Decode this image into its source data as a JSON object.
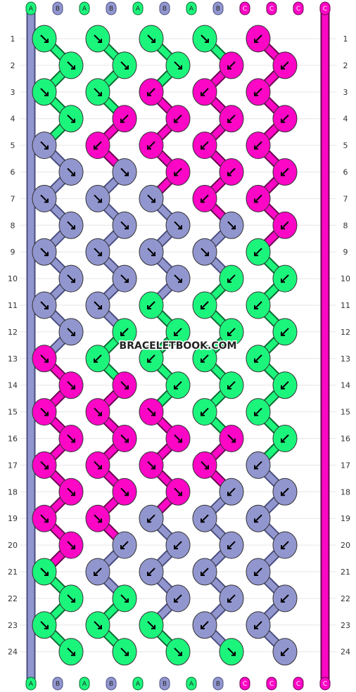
{
  "watermark": "BRACELETBOOK.COM",
  "colors": {
    "A": "#1cf57c",
    "B": "#9296cf",
    "C": "#fc07c5"
  },
  "strands": {
    "top": [
      "A",
      "B",
      "A",
      "B",
      "A",
      "B",
      "A",
      "B",
      "C",
      "C",
      "C",
      "C"
    ],
    "bottom": [
      "A",
      "B",
      "A",
      "B",
      "A",
      "B",
      "A",
      "B",
      "C",
      "C",
      "C",
      "C"
    ]
  },
  "row_labels": [
    "1",
    "2",
    "3",
    "4",
    "5",
    "6",
    "7",
    "8",
    "9",
    "10",
    "11",
    "12",
    "13",
    "14",
    "15",
    "16",
    "17",
    "18",
    "19",
    "20",
    "21",
    "22",
    "23",
    "24"
  ],
  "knots": [
    [
      "A:dr",
      "A:dr",
      "A:dr",
      "A:dr",
      "C:dl"
    ],
    [
      "A:dr",
      "A:dr",
      "A:dr",
      "C:dl",
      "C:dl"
    ],
    [
      "A:dr",
      "A:dr",
      "C:dl",
      "C:dl",
      "C:dl"
    ],
    [
      "A:dr",
      "C:dl",
      "C:dl",
      "C:dl",
      "C:dl"
    ],
    [
      "B:dr",
      "C:dl",
      "C:dl",
      "C:dl",
      "C:dl"
    ],
    [
      "B:dr",
      "B:dr",
      "C:dl",
      "C:dl",
      "C:dl"
    ],
    [
      "B:dr",
      "B:dr",
      "B:dr",
      "C:dl",
      "C:dl"
    ],
    [
      "B:dr",
      "B:dr",
      "B:dr",
      "B:dr",
      "C:dl"
    ],
    [
      "B:dr",
      "B:dr",
      "B:dr",
      "B:dr",
      "A:dl"
    ],
    [
      "B:dr",
      "B:dr",
      "B:dr",
      "A:dl",
      "A:dl"
    ],
    [
      "B:dr",
      "B:dr",
      "A:dl",
      "A:dl",
      "A:dl"
    ],
    [
      "B:dr",
      "A:dl",
      "A:dl",
      "A:dl",
      "A:dl"
    ],
    [
      "C:dr",
      "A:dl",
      "A:dl",
      "A:dl",
      "A:dl"
    ],
    [
      "C:dr",
      "C:dr",
      "A:dl",
      "A:dl",
      "A:dl"
    ],
    [
      "C:dr",
      "C:dr",
      "C:dr",
      "A:dl",
      "A:dl"
    ],
    [
      "C:dr",
      "C:dr",
      "C:dr",
      "C:dr",
      "A:dl"
    ],
    [
      "C:dr",
      "C:dr",
      "C:dr",
      "C:dr",
      "B:dl"
    ],
    [
      "C:dr",
      "C:dr",
      "C:dr",
      "B:dl",
      "B:dl"
    ],
    [
      "C:dr",
      "C:dr",
      "B:dl",
      "B:dl",
      "B:dl"
    ],
    [
      "C:dr",
      "B:dl",
      "B:dl",
      "B:dl",
      "B:dl"
    ],
    [
      "A:dr",
      "B:dl",
      "B:dl",
      "B:dl",
      "B:dl"
    ],
    [
      "A:dr",
      "A:dr",
      "B:dl",
      "B:dl",
      "B:dl"
    ],
    [
      "A:dr",
      "A:dr",
      "A:dr",
      "B:dl",
      "B:dl"
    ],
    [
      "A:dr",
      "A:dr",
      "A:dr",
      "A:dr",
      "B:dl"
    ]
  ]
}
